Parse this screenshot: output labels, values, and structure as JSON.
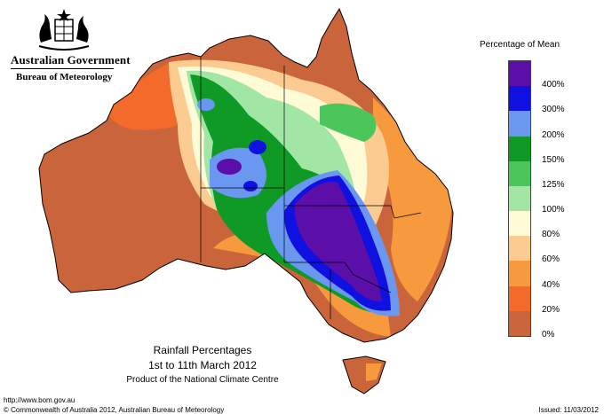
{
  "header": {
    "government": "Australian Government",
    "bureau": "Bureau of Meteorology"
  },
  "legend": {
    "title": "Percentage of Mean",
    "labels": [
      "400%",
      "300%",
      "200%",
      "150%",
      "125%",
      "100%",
      "80%",
      "60%",
      "40%",
      "20%",
      "0%"
    ],
    "colors": [
      "#5b0fa8",
      "#1010e0",
      "#6a98f0",
      "#0e9a25",
      "#4bc65b",
      "#a2e6a6",
      "#fffbd6",
      "#fbcb92",
      "#f79a3e",
      "#f46a2a",
      "#c9643b"
    ]
  },
  "caption": {
    "title": "Rainfall Percentages",
    "period": "1st to 11th March 2012",
    "credit": "Product of the National Climate Centre"
  },
  "footer": {
    "url": "http://www.bom.gov.au",
    "copyright": "© Commonwealth of Australia 2012, Australian Bureau of Meteorology",
    "issued": "Issued: 11/03/2012"
  },
  "map": {
    "colors": {
      "land_dry": "#c9643b",
      "deep_orange": "#f46a2a",
      "orange": "#f79a3e",
      "peach": "#fbcb92",
      "cream": "#fffbd6",
      "light_green": "#a2e6a6",
      "mid_green": "#4bc65b",
      "green": "#0e9a25",
      "light_blue": "#6a98f0",
      "blue": "#1010e0",
      "purple": "#5b0fa8"
    }
  }
}
